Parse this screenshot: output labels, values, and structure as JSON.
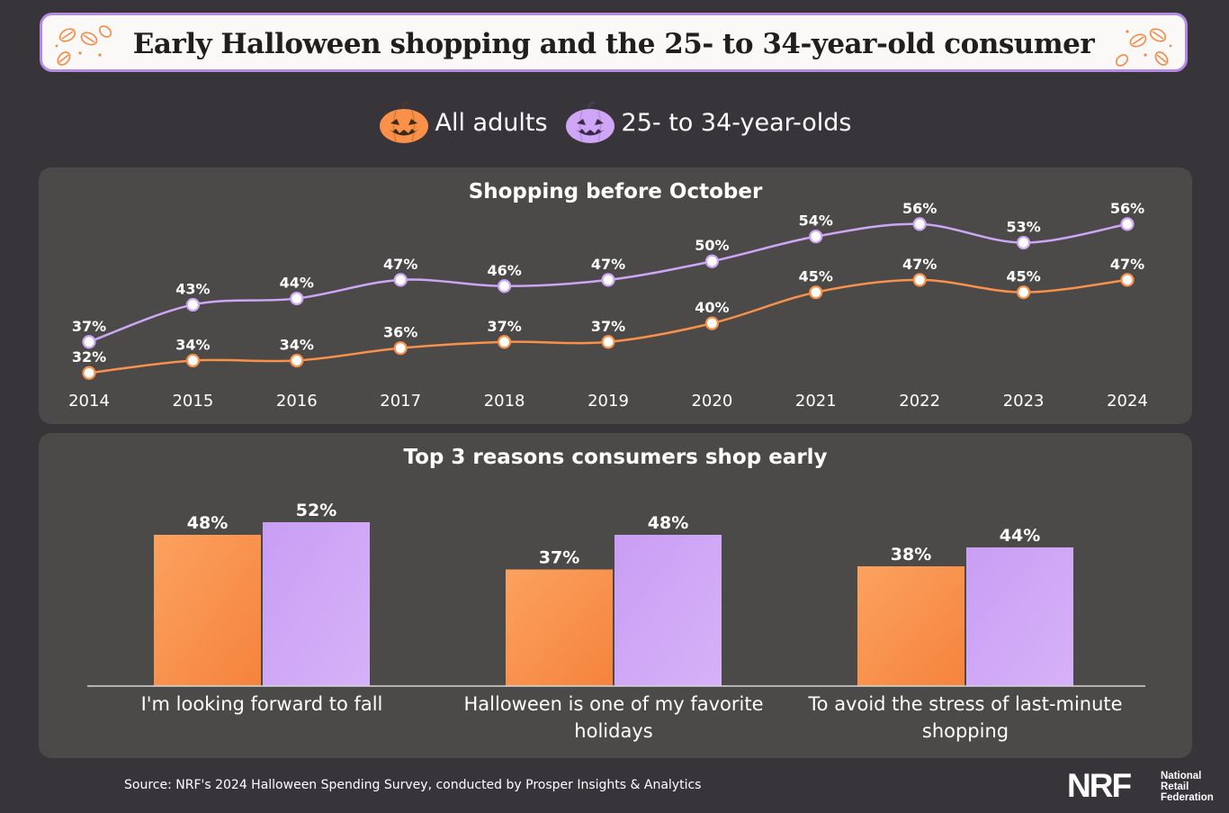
{
  "title": "Early Halloween shopping and the 25- to 34-year-old consumer",
  "legend": {
    "series_a": "All adults",
    "series_b": "25- to 34-year-olds"
  },
  "colors": {
    "all_adults": "#f9914a",
    "age_25_34": "#cfa6f6",
    "panel": "#4b4a48",
    "background": "#373539",
    "title_border": "#b58ae6"
  },
  "chart_data": [
    {
      "type": "line",
      "title": "Shopping before October",
      "x": [
        "2014",
        "2015",
        "2016",
        "2017",
        "2018",
        "2019",
        "2020",
        "2021",
        "2022",
        "2023",
        "2024"
      ],
      "series": [
        {
          "name": "All adults",
          "values": [
            32,
            34,
            34,
            36,
            37,
            37,
            40,
            45,
            47,
            45,
            47
          ],
          "labels": [
            "32%",
            "34%",
            "34%",
            "36%",
            "37%",
            "37%",
            "40%",
            "45%",
            "47%",
            "45%",
            "47%"
          ]
        },
        {
          "name": "25- to 34-year-olds",
          "values": [
            37,
            43,
            44,
            47,
            46,
            47,
            50,
            54,
            56,
            53,
            56
          ],
          "labels": [
            "37%",
            "43%",
            "44%",
            "47%",
            "46%",
            "47%",
            "50%",
            "54%",
            "56%",
            "53%",
            "56%"
          ]
        }
      ],
      "ylim": [
        30,
        58
      ],
      "grid": false
    },
    {
      "type": "bar",
      "title": "Top 3 reasons consumers shop early",
      "categories": [
        "I'm looking forward to fall",
        "Halloween is one of my favorite holidays",
        "To avoid the stress of last-minute shopping"
      ],
      "series": [
        {
          "name": "All adults",
          "values": [
            48,
            37,
            38
          ],
          "labels": [
            "48%",
            "37%",
            "38%"
          ]
        },
        {
          "name": "25- to 34-year-olds",
          "values": [
            52,
            48,
            44
          ],
          "labels": [
            "52%",
            "48%",
            "44%"
          ]
        }
      ],
      "ylim": [
        0,
        58
      ],
      "grid": false
    }
  ],
  "footer": {
    "source": "Source: NRF's 2024 Halloween Spending Survey, conducted by Prosper Insights & Analytics",
    "logo_letters": "NRF",
    "logo_line1": "National",
    "logo_line2": "Retail",
    "logo_line3": "Federation"
  }
}
